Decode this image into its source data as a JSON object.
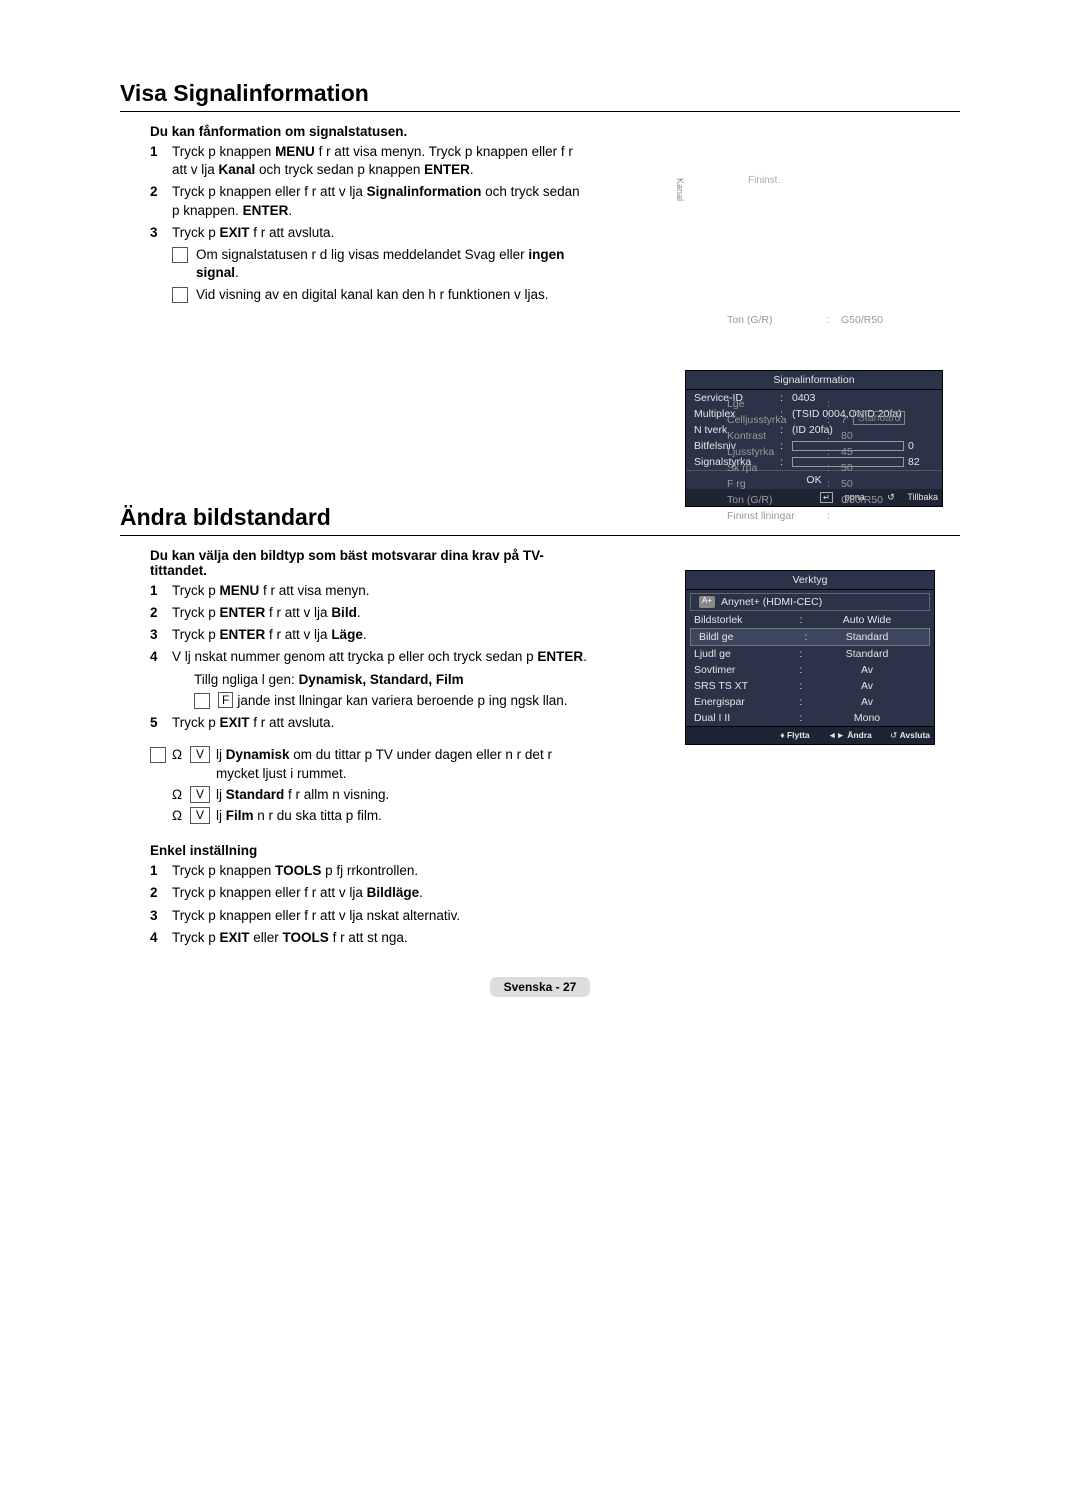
{
  "section1": {
    "title": "Visa Signalinformation",
    "intro": "Du kan fånformation om signalstatusen.",
    "steps": [
      {
        "num": "1",
        "parts": [
          "Tryck p  knappen ",
          {
            "b": "MENU"
          },
          " f r att visa menyn. Tryck p  knappen  eller  f r att v lja       ",
          {
            "b": "Kanal"
          },
          " och tryck sedan p  knappen ",
          {
            "b": "ENTER"
          },
          "."
        ]
      },
      {
        "num": "2",
        "parts": [
          "Tryck p  knappen  eller  f r att v lja        ",
          {
            "b": "Signalinformation"
          },
          " och tryck sedan p  knappen. ",
          {
            "b": "ENTER"
          },
          "."
        ]
      },
      {
        "num": "3",
        "parts": [
          "Tryck p  ",
          {
            "b": "EXIT"
          },
          " f r att avsluta."
        ]
      }
    ],
    "notes": [
      [
        "Om signalstatusen  r d lig visas meddelandet Svag eller ",
        {
          "b": "ingen signal"
        },
        "."
      ],
      [
        "Vid visning av en digital kanal kan den h r funktionen v ljas."
      ]
    ],
    "side_kanal": "Kanal",
    "side_fininst": "Fininst."
  },
  "osd_signal": {
    "title": "Signalinformation",
    "rows": [
      {
        "label": "Service-ID",
        "value": "0403"
      },
      {
        "label": "Multiplex",
        "value": "(TSID 0004,ONID 20fa)"
      },
      {
        "label": "N tverk",
        "value": "(ID 20fa)"
      }
    ],
    "bars": [
      {
        "label": "Bitfelsniv",
        "fill": 5,
        "value": "0"
      },
      {
        "label": "Signalstyrka",
        "fill": 82,
        "value": "82"
      }
    ],
    "ok": "OK",
    "foot_open": "ppna",
    "foot_back": "Tillbaka"
  },
  "section2": {
    "title": "Ändra bildstandard",
    "intro": "Du kan välja den bildtyp som bäst motsvarar dina krav på TV-tittandet.",
    "steps": [
      {
        "num": "1",
        "parts": [
          "Tryck p  ",
          {
            "b": "MENU"
          },
          " f r att visa menyn."
        ]
      },
      {
        "num": "2",
        "parts": [
          "Tryck p  ",
          {
            "b": "ENTER"
          },
          " f r att v lja  ",
          {
            "b": "Bild"
          },
          "."
        ]
      },
      {
        "num": "3",
        "parts": [
          "Tryck p  ",
          {
            "b": "ENTER"
          },
          " f r att v lja  ",
          {
            "b": "Läge"
          },
          "."
        ]
      },
      {
        "num": "4",
        "parts": [
          "V lj  nskat nummer genom att trycka p   eller  och tryck sedan p  ",
          {
            "b": "ENTER"
          },
          "."
        ]
      }
    ],
    "modes_line_pre": "Tillg ngliga l gen: ",
    "modes": "Dynamisk, Standard, Film",
    "f_note": "jande inst llningar kan variera beroende p  ing ngsk llan.",
    "step5": {
      "num": "5",
      "parts": [
        "Tryck p  ",
        {
          "b": "EXIT"
        },
        " f r att avsluta."
      ]
    },
    "tips": [
      {
        "text_pre": "lj ",
        "bold": "Dynamisk",
        "text_post": " om du tittar p  TV under dagen eller n r det  r mycket ljust i rummet."
      },
      {
        "text_pre": "lj ",
        "bold": "Standard",
        "text_post": " f r allm n visning."
      },
      {
        "text_pre": "lj ",
        "bold": "Film",
        "text_post": " n r du ska titta p  film."
      }
    ],
    "easy_title": "Enkel inställning",
    "easy_steps": [
      {
        "num": "1",
        "parts": [
          "Tryck p  knappen ",
          {
            "b": "TOOLS"
          },
          " p  fj rrkontrollen."
        ]
      },
      {
        "num": "2",
        "parts": [
          "Tryck p  knappen  eller  f r att v lja        ",
          {
            "b": "Bildläge"
          },
          "."
        ]
      },
      {
        "num": "3",
        "parts": [
          "Tryck p  knappen  eller  f r att v lja  nskat alternativ."
        ]
      },
      {
        "num": "4",
        "parts": [
          "Tryck p  ",
          {
            "b": "EXIT"
          },
          " eller ",
          {
            "b": "TOOLS"
          },
          " f r att st nga."
        ]
      }
    ]
  },
  "light_top": {
    "rows": [
      {
        "label": "Ton (G/R)",
        "value": "G50/R50"
      }
    ]
  },
  "light_panel": {
    "rows": [
      {
        "label": "Lge",
        "value": "",
        "hilite_value": ""
      },
      {
        "label": "Celljusstyrka",
        "value": "7",
        "hilite_value": "Standard"
      },
      {
        "label": "Kontrast",
        "value": "80"
      },
      {
        "label": "Ljusstyrka",
        "value": "45"
      },
      {
        "label": "Sk rpa",
        "value": "50"
      },
      {
        "label": "F rg",
        "value": "50"
      },
      {
        "label": "Ton (G/R)",
        "value": "G50/R50"
      },
      {
        "label": "Fininst llningar",
        "value": ""
      }
    ]
  },
  "tool_osd": {
    "title": "Verktyg",
    "anynet": "Anynet+ (HDMI-CEC)",
    "rows": [
      {
        "label": "Bildstorlek",
        "value": "Auto Wide",
        "hl": false
      },
      {
        "label": "Bildl ge",
        "value": "Standard",
        "hl": true
      },
      {
        "label": "Ljudl ge",
        "value": "Standard",
        "hl": false
      },
      {
        "label": "Sovtimer",
        "value": "Av",
        "hl": false
      },
      {
        "label": "SRS TS XT",
        "value": "Av",
        "hl": false
      },
      {
        "label": "Energispar",
        "value": "Av",
        "hl": false
      },
      {
        "label": "Dual I II",
        "value": "Mono",
        "hl": false
      }
    ],
    "foot_move": "Flytta",
    "foot_change": "Ändra",
    "foot_exit": "Avsluta"
  },
  "footer": {
    "lang": "Svenska - ",
    "page": "27"
  }
}
